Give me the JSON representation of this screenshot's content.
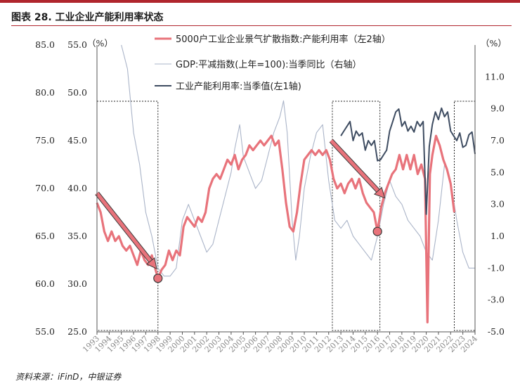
{
  "figure": {
    "title": "图表 28. 工业企业产能利用率状态",
    "source": "资料来源：iFinD，中银证券"
  },
  "chart_data": {
    "type": "line",
    "axes": {
      "y_left_outer": {
        "ylim": [
          55,
          85
        ],
        "ticks": [
          "55.0",
          "60.0",
          "65.0",
          "70.0",
          "75.0",
          "80.0",
          "85.0"
        ]
      },
      "y_left_inner": {
        "ylim": [
          25,
          55
        ],
        "ticks": [
          "25.0",
          "30.0",
          "35.0",
          "40.0",
          "45.0",
          "50.0",
          "55.0"
        ],
        "unit": "（%）"
      },
      "y_right": {
        "ylim": [
          -5,
          13
        ],
        "ticks": [
          "-5.0",
          "-3.0",
          "-1.0",
          "1.0",
          "3.0",
          "5.0",
          "7.0",
          "9.0",
          "11.0"
        ],
        "unit": "（%）"
      },
      "x_ticks": [
        "1993",
        "1994",
        "1995",
        "1996",
        "1997",
        "1998",
        "1999",
        "2000",
        "2001",
        "2002",
        "2003",
        "2004",
        "2005",
        "2006",
        "2007",
        "2008",
        "2009",
        "2010",
        "2011",
        "2012",
        "2013",
        "2014",
        "2015",
        "2016",
        "2017",
        "2018",
        "2019",
        "2020",
        "2021",
        "2022",
        "2023",
        "2024"
      ]
    },
    "series": [
      {
        "name": "5000户工业企业景气扩散指数:产能利用率（左2轴）",
        "color": "#e8737b",
        "axis": "y_left_inner",
        "x": [
          1993.0,
          1993.3,
          1993.6,
          1993.9,
          1994.2,
          1994.5,
          1994.8,
          1995.1,
          1995.4,
          1995.7,
          1996.0,
          1996.3,
          1996.6,
          1996.9,
          1997.2,
          1997.5,
          1997.8,
          1998.0,
          1998.3,
          1998.6,
          1998.9,
          1999.2,
          1999.5,
          1999.8,
          2000.1,
          2000.4,
          2000.7,
          2001.0,
          2001.3,
          2001.6,
          2001.9,
          2002.2,
          2002.5,
          2002.8,
          2003.1,
          2003.4,
          2003.7,
          2004.0,
          2004.3,
          2004.6,
          2004.9,
          2005.2,
          2005.5,
          2005.8,
          2006.1,
          2006.4,
          2006.7,
          2007.0,
          2007.3,
          2007.6,
          2007.9,
          2008.2,
          2008.5,
          2008.8,
          2009.1,
          2009.4,
          2009.7,
          2010.0,
          2010.3,
          2010.6,
          2010.9,
          2011.2,
          2011.5,
          2011.8,
          2012.1,
          2012.4,
          2012.7,
          2013.0,
          2013.3,
          2013.6,
          2013.9,
          2014.2,
          2014.5,
          2014.8,
          2015.1,
          2015.4,
          2015.7,
          2016.0,
          2016.3,
          2016.6,
          2016.9,
          2017.2,
          2017.5,
          2017.8,
          2018.1,
          2018.4,
          2018.7,
          2019.0,
          2019.3,
          2019.6,
          2019.9,
          2020.1,
          2020.3,
          2020.5,
          2020.8,
          2021.1,
          2021.4,
          2021.7,
          2022.0,
          2022.3
        ],
        "values": [
          38.5,
          37.5,
          35.5,
          34.5,
          35.5,
          34.5,
          35.0,
          34.0,
          33.5,
          34.0,
          33.0,
          32.0,
          33.5,
          32.5,
          32.0,
          33.0,
          31.5,
          30.6,
          31.5,
          32.0,
          33.5,
          32.5,
          33.5,
          33.0,
          36.0,
          37.0,
          36.5,
          36.0,
          37.0,
          36.5,
          37.5,
          40.0,
          41.0,
          41.5,
          41.0,
          42.0,
          43.0,
          42.5,
          43.5,
          42.0,
          43.0,
          43.5,
          44.5,
          44.0,
          44.5,
          45.0,
          44.5,
          45.0,
          45.5,
          44.5,
          45.0,
          42.0,
          38.5,
          36.0,
          35.5,
          37.5,
          40.5,
          43.0,
          43.5,
          44.0,
          43.5,
          44.0,
          43.5,
          44.0,
          43.0,
          41.0,
          40.0,
          40.5,
          39.5,
          40.5,
          41.0,
          40.0,
          41.0,
          39.5,
          38.5,
          38.0,
          37.5,
          35.5,
          38.0,
          39.5,
          40.5,
          41.5,
          42.0,
          43.5,
          42.0,
          43.5,
          42.0,
          43.5,
          41.5,
          42.5,
          41.0,
          26.0,
          41.5,
          43.5,
          45.5,
          44.5,
          43.0,
          42.0,
          40.5,
          37.5
        ]
      },
      {
        "name": "GDP:平减指数(上年=100):当季同比（右轴）",
        "color": "#aab4c8",
        "axis": "y_right",
        "x": [
          1995.0,
          1995.5,
          1996.0,
          1996.5,
          1997.0,
          1997.5,
          1998.0,
          1998.5,
          1999.0,
          1999.5,
          2000.0,
          2000.5,
          2001.0,
          2001.5,
          2002.0,
          2002.5,
          2003.0,
          2003.5,
          2004.0,
          2004.3,
          2004.7,
          2005.0,
          2005.5,
          2006.0,
          2006.5,
          2007.0,
          2007.5,
          2008.0,
          2008.3,
          2008.6,
          2009.0,
          2009.3,
          2009.6,
          2010.0,
          2010.5,
          2011.0,
          2011.5,
          2012.0,
          2012.5,
          2013.0,
          2013.5,
          2014.0,
          2014.5,
          2015.0,
          2015.5,
          2016.0,
          2016.5,
          2017.0,
          2017.5,
          2018.0,
          2018.5,
          2019.0,
          2019.5,
          2020.0,
          2020.5,
          2021.0,
          2021.5,
          2022.0,
          2022.5,
          2023.0,
          2023.5,
          2024.0
        ],
        "values": [
          13.0,
          11.5,
          7.5,
          5.5,
          2.5,
          1.0,
          -1.0,
          -1.5,
          -1.5,
          -1.0,
          2.0,
          3.0,
          2.0,
          1.0,
          0.0,
          0.5,
          2.0,
          3.5,
          5.0,
          6.5,
          8.0,
          6.0,
          5.0,
          4.0,
          4.5,
          6.0,
          7.5,
          8.5,
          9.5,
          7.5,
          2.0,
          -0.5,
          1.0,
          4.0,
          6.0,
          7.5,
          8.0,
          4.5,
          2.0,
          1.5,
          2.0,
          1.0,
          0.5,
          0.0,
          -0.5,
          1.0,
          3.0,
          4.5,
          3.5,
          3.0,
          2.0,
          1.5,
          1.0,
          0.0,
          -0.5,
          2.0,
          5.5,
          4.5,
          2.0,
          0.0,
          -1.0,
          -1.0
        ]
      },
      {
        "name": "工业产能利用率:当季值(左1轴)",
        "color": "#3e4c61",
        "axis": "y_left_outer",
        "x": [
          2013.0,
          2013.25,
          2013.5,
          2013.75,
          2014.0,
          2014.25,
          2014.5,
          2014.75,
          2015.0,
          2015.25,
          2015.5,
          2015.75,
          2016.0,
          2016.25,
          2016.5,
          2016.75,
          2017.0,
          2017.25,
          2017.5,
          2017.75,
          2018.0,
          2018.25,
          2018.5,
          2018.75,
          2019.0,
          2019.25,
          2019.5,
          2019.75,
          2020.0,
          2020.25,
          2020.5,
          2020.75,
          2021.0,
          2021.25,
          2021.5,
          2021.75,
          2022.0,
          2022.25,
          2022.5,
          2022.75,
          2023.0,
          2023.25,
          2023.5,
          2023.75,
          2024.0
        ],
        "values": [
          75.5,
          76.0,
          76.5,
          77.0,
          75.0,
          76.0,
          75.5,
          75.8,
          74.0,
          75.0,
          74.5,
          75.0,
          72.9,
          73.0,
          73.5,
          74.0,
          76.0,
          77.0,
          78.0,
          78.3,
          76.5,
          77.0,
          76.0,
          76.5,
          75.9,
          77.0,
          76.5,
          77.0,
          67.3,
          74.4,
          76.7,
          78.0,
          77.2,
          78.4,
          77.5,
          78.0,
          76.0,
          75.5,
          75.0,
          75.8,
          74.3,
          74.5,
          75.6,
          75.9,
          73.6
        ]
      }
    ],
    "annotations": {
      "dashed_boxes": [
        [
          1993.0,
          1998.0
        ],
        [
          2012.3,
          2016.2
        ],
        [
          2022.3,
          2024.0
        ]
      ],
      "arrows": [
        {
          "from": [
            1993.0,
            39.5
          ],
          "to": [
            1997.9,
            31.6
          ]
        },
        {
          "from": [
            2012.2,
            45.0
          ],
          "to": [
            2016.6,
            39.0
          ]
        }
      ],
      "markers": [
        [
          1998.0,
          30.6
        ],
        [
          2016.0,
          35.5
        ]
      ]
    },
    "legend": "top-center",
    "grid": false
  }
}
